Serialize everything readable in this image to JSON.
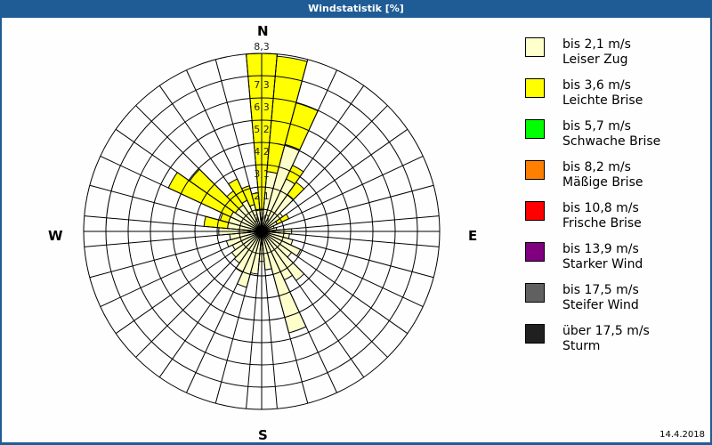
{
  "window": {
    "title": "Windstatistik [%]"
  },
  "compass": {
    "n": "N",
    "e": "E",
    "s": "S",
    "w": "W"
  },
  "scale_labels": [
    "1,0",
    "2,1",
    "3,1",
    "4,2",
    "5,2",
    "6,3",
    "7,3",
    "8,3"
  ],
  "legend": [
    {
      "range": "bis 2,1 m/s",
      "name": "Leiser Zug",
      "color": "#ffffcc"
    },
    {
      "range": "bis 3,6 m/s",
      "name": "Leichte Brise",
      "color": "#ffff00"
    },
    {
      "range": "bis 5,7 m/s",
      "name": "Schwache Brise",
      "color": "#00ff00"
    },
    {
      "range": "bis 8,2 m/s",
      "name": "Mäßige Brise",
      "color": "#ff8000"
    },
    {
      "range": "bis 10,8 m/s",
      "name": "Frische Brise",
      "color": "#ff0000"
    },
    {
      "range": "bis 13,9 m/s",
      "name": "Starker Wind",
      "color": "#800080"
    },
    {
      "range": "bis 17,5 m/s",
      "name": "Steifer Wind",
      "color": "#606060"
    },
    {
      "range": "über 17,5 m/s",
      "name": "Sturm",
      "color": "#202020"
    }
  ],
  "date": "14.4.2018",
  "chart_data": {
    "type": "polar-bar",
    "title": "Windstatistik [%]",
    "unit": "%",
    "rmax": 8.3,
    "rings": [
      1.0,
      2.1,
      3.1,
      4.2,
      5.2,
      6.3,
      7.3,
      8.3
    ],
    "sector_width_deg": 10,
    "directions_deg": [
      0,
      10,
      20,
      30,
      40,
      50,
      60,
      70,
      80,
      90,
      100,
      110,
      120,
      130,
      140,
      150,
      160,
      170,
      180,
      190,
      200,
      210,
      220,
      230,
      240,
      250,
      260,
      270,
      280,
      290,
      300,
      310,
      320,
      330,
      340,
      350
    ],
    "series": [
      {
        "name": "bis 2,1 m/s (Leiser Zug)",
        "color": "#ffffcc",
        "values": [
          1.0,
          2.8,
          4.2,
          2.7,
          2.1,
          1.2,
          0.8,
          0.6,
          0.7,
          1.4,
          1.3,
          1.5,
          2.0,
          1.7,
          2.8,
          2.5,
          4.9,
          1.8,
          1.4,
          2.0,
          2.7,
          2.1,
          1.8,
          1.7,
          1.5,
          1.7,
          1.5,
          2.0,
          1.6,
          1.6,
          1.6,
          1.5,
          1.5,
          1.6,
          1.3,
          1.0
        ]
      },
      {
        "name": "bis 3,6 m/s (Leichte Brise)",
        "color": "#ffff00",
        "values": [
          7.3,
          5.4,
          2.0,
          0.7,
          0.7,
          0,
          0.6,
          0,
          0,
          0,
          0,
          0,
          0,
          0,
          0,
          0,
          0,
          0,
          0,
          0,
          0,
          0,
          0,
          0,
          0,
          0,
          0,
          0,
          1.1,
          0.4,
          3.2,
          2.6,
          0.8,
          1.1,
          0.9,
          0.8
        ]
      }
    ]
  }
}
